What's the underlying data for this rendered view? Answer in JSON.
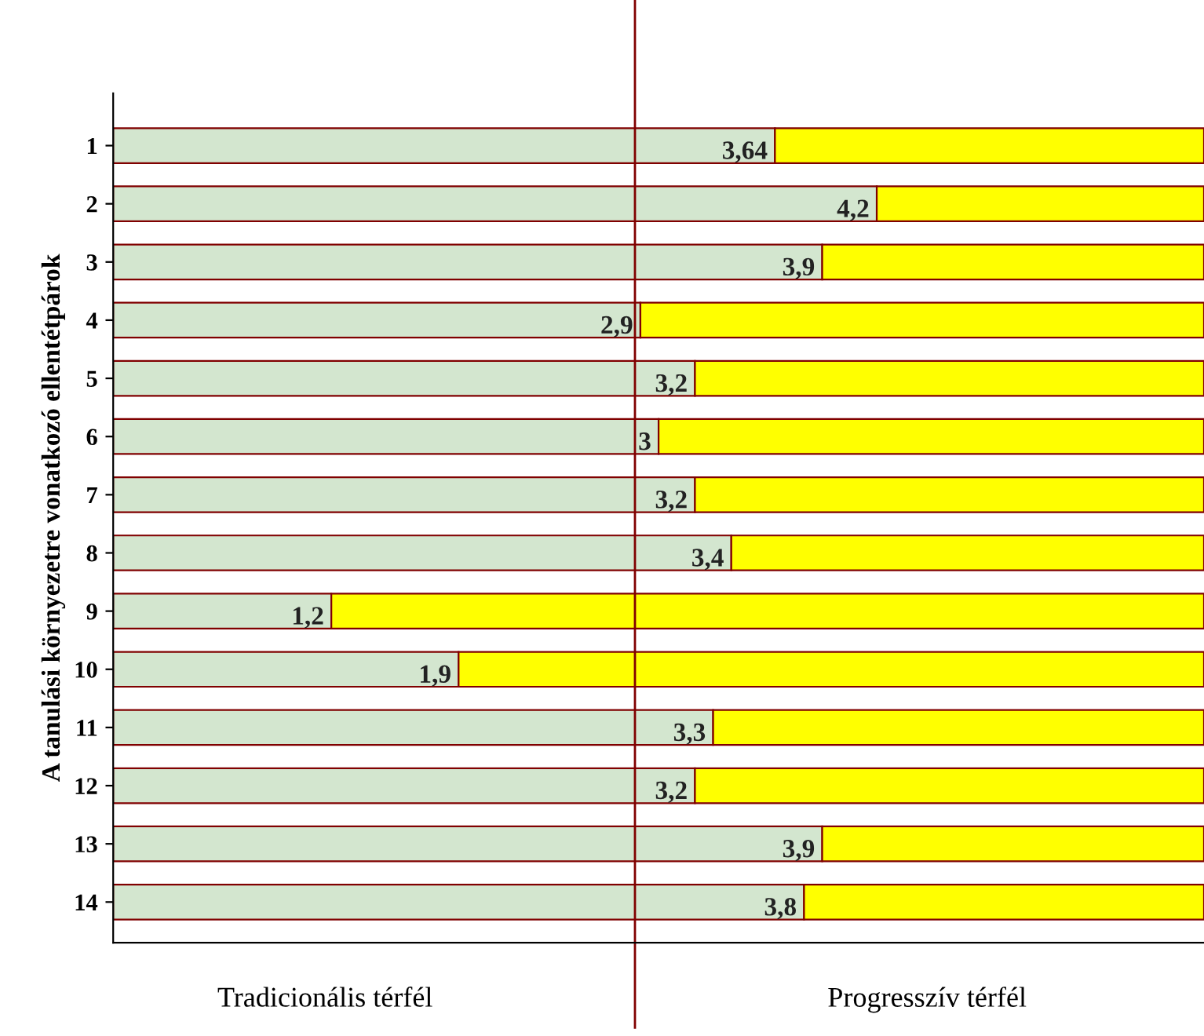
{
  "chart_data": {
    "type": "bar",
    "orientation": "horizontal",
    "stacked": true,
    "ylabel": "A tanulási környezetre vonatkozó ellentétpárok",
    "categories": [
      "1",
      "2",
      "3",
      "4",
      "5",
      "6",
      "7",
      "8",
      "9",
      "10",
      "11",
      "12",
      "13",
      "14"
    ],
    "series": [
      {
        "color": "#d3e6cf",
        "values": [
          3.64,
          4.2,
          3.9,
          2.9,
          3.2,
          3,
          3.2,
          3.4,
          1.2,
          1.9,
          3.3,
          3.2,
          3.9,
          3.8
        ],
        "value_labels": [
          "3,64",
          "4,2",
          "3,9",
          "2,9",
          "3,2",
          "3",
          "3,2",
          "3,4",
          "1,2",
          "1,9",
          "3,3",
          "3,2",
          "3,9",
          "3,8"
        ]
      },
      {
        "color": "#ffff00",
        "values": [
          2.36,
          1.8,
          2.1,
          3.1,
          2.8,
          3,
          2.8,
          2.6,
          4.8,
          4.1,
          2.7,
          2.8,
          2.1,
          2.2
        ]
      }
    ],
    "xlim": [
      0,
      6
    ],
    "tick_labels": "y",
    "grid": false,
    "legend": false,
    "ref_lines": [
      {
        "axis": "x",
        "value": 2.87,
        "color": "#800000"
      }
    ],
    "annotations": [
      "Tradicionális térfél",
      "Progresszív térfél"
    ]
  }
}
